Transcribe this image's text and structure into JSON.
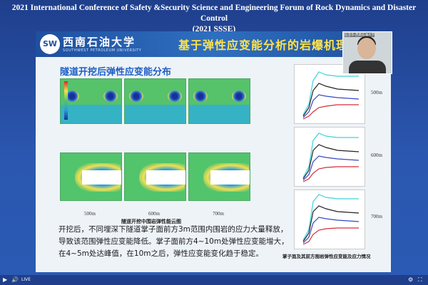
{
  "conference": {
    "title_line1": "2021 International Conference of Safety &Security Science and Engineering Forum of Rock Dynamics and Disaster Control",
    "title_line2": "(2021 SSSE)"
  },
  "slide": {
    "university_cn": "西南石油大学",
    "university_en": "SOUTHWEST PETROLEUM UNIVERSITY",
    "title": "基于弹性应变能分析的岩爆机理",
    "section_title": "隧道开挖后弹性应变能分布",
    "depths": [
      "500m",
      "600m",
      "700m"
    ],
    "left_caption": "隧道开挖中围岩弹性能云图",
    "paragraph": [
      "开挖后，不同埋深下隧道掌子面前方3m范围内围岩的应力大量释放，",
      "导致该范围弹性应变能降低。掌子面前方4~10m处弹性应变能增大，",
      "在4~5m处达峰值，在10m之后，弹性应变能变化趋于稳定。"
    ],
    "right_caption": "掌子面及其前方围岩弹性应变能及应力情况",
    "chart_depth_labels": [
      "500m",
      "600m",
      "700m"
    ]
  },
  "webcam": {
    "name_tag": "石亚华-西南石油大学"
  },
  "controls": {
    "play_icon": "▶",
    "volume_icon": "🔊",
    "live_label": "LIVE",
    "fullscreen_icon": "⛶",
    "settings_icon": "⚙"
  },
  "colors": {
    "header": "#1f4f9e",
    "title": "#ffe34a",
    "section": "#1f5fc4"
  }
}
